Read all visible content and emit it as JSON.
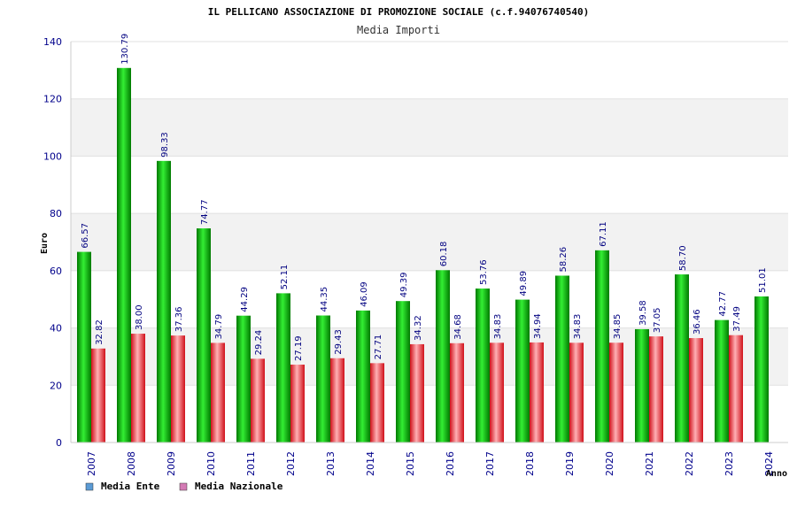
{
  "chart_data": {
    "type": "bar",
    "title": "IL PELLICANO ASSOCIAZIONE DI PROMOZIONE SOCIALE (c.f.94076740540)",
    "subtitle": "Media Importi",
    "ylabel": "Euro",
    "xlabel": "Anno",
    "ylim": [
      0,
      140
    ],
    "yticks": [
      0,
      20,
      40,
      60,
      80,
      100,
      120,
      140
    ],
    "grid": true,
    "legend_position": "bottom-left",
    "categories": [
      "2007",
      "2008",
      "2009",
      "2010",
      "2011",
      "2012",
      "2013",
      "2014",
      "2015",
      "2016",
      "2017",
      "2018",
      "2019",
      "2020",
      "2021",
      "2022",
      "2023",
      "2024"
    ],
    "series": [
      {
        "name": "Media Ente",
        "color": "#00aa00",
        "legend_color": "#5b9bd5",
        "values": [
          66.57,
          130.79,
          98.33,
          74.77,
          44.29,
          52.11,
          44.35,
          46.09,
          49.39,
          60.18,
          53.76,
          49.89,
          58.26,
          67.11,
          39.58,
          58.7,
          42.77,
          51.01
        ],
        "labels": [
          "66.57",
          "130.79",
          "98.33",
          "74.77",
          "44.29",
          "52.11",
          "44.35",
          "46.09",
          "49.39",
          "60.18",
          "53.76",
          "49.89",
          "58.26",
          "67.11",
          "39.58",
          "58.70",
          "42.77",
          "51.01"
        ]
      },
      {
        "name": "Media Nazionale",
        "color": "#e8202a",
        "legend_color": "#d47bb5",
        "values": [
          32.82,
          38.0,
          37.36,
          34.79,
          29.24,
          27.19,
          29.43,
          27.71,
          34.32,
          34.68,
          34.83,
          34.94,
          34.83,
          34.85,
          37.05,
          36.46,
          37.49,
          null
        ],
        "labels": [
          "32.82",
          "38.00",
          "37.36",
          "34.79",
          "29.24",
          "27.19",
          "29.43",
          "27.71",
          "34.32",
          "34.68",
          "34.83",
          "34.94",
          "34.83",
          "34.85",
          "37.05",
          "36.46",
          "37.49",
          ""
        ]
      }
    ]
  }
}
